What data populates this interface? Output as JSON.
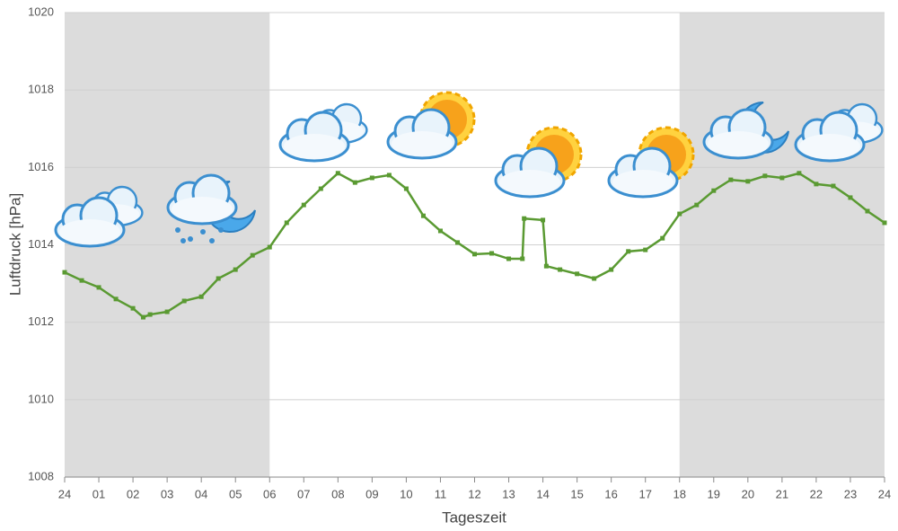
{
  "chart_data": {
    "type": "line",
    "y_label": "Luftdruck [hPa]",
    "x_label": "Tageszeit",
    "xlim": [
      0,
      24
    ],
    "ylim": [
      1008,
      1020
    ],
    "yticks": [
      1008,
      1010,
      1012,
      1014,
      1016,
      1018,
      1020
    ],
    "xticks": [
      {
        "value": 0,
        "label": "24"
      },
      {
        "value": 1,
        "label": "01"
      },
      {
        "value": 2,
        "label": "02"
      },
      {
        "value": 3,
        "label": "03"
      },
      {
        "value": 4,
        "label": "04"
      },
      {
        "value": 5,
        "label": "05"
      },
      {
        "value": 6,
        "label": "06"
      },
      {
        "value": 7,
        "label": "07"
      },
      {
        "value": 8,
        "label": "08"
      },
      {
        "value": 9,
        "label": "09"
      },
      10,
      11,
      12,
      13,
      14,
      15,
      16,
      17,
      18,
      19,
      20,
      21,
      22,
      23,
      24
    ],
    "shaded_ranges": [
      [
        0,
        6
      ],
      [
        18,
        24
      ]
    ],
    "grid": true,
    "series": [
      {
        "color": "#5a9a32",
        "x": [
          0,
          0.5,
          1,
          1.5,
          2,
          2.3,
          2.5,
          3,
          3.5,
          4,
          4.5,
          5,
          5.5,
          6,
          6.5,
          7,
          7.5,
          8,
          8.5,
          9,
          9.5,
          10,
          10.5,
          11,
          11.5,
          12,
          12.5,
          13,
          13.4,
          13.45,
          14,
          14.1,
          14.5,
          15,
          15.5,
          16,
          16.5,
          17,
          17.5,
          18,
          18.5,
          19,
          19.5,
          20,
          20.5,
          21,
          21.5,
          22,
          22.5,
          23,
          23.5,
          24
        ],
        "values": [
          1013.29,
          1013.08,
          1012.9,
          1012.6,
          1012.36,
          1012.13,
          1012.2,
          1012.27,
          1012.55,
          1012.66,
          1013.13,
          1013.36,
          1013.73,
          1013.94,
          1014.57,
          1015.03,
          1015.45,
          1015.85,
          1015.61,
          1015.73,
          1015.8,
          1015.45,
          1014.75,
          1014.36,
          1014.06,
          1013.76,
          1013.78,
          1013.64,
          1013.64,
          1014.68,
          1014.64,
          1013.45,
          1013.36,
          1013.25,
          1013.13,
          1013.36,
          1013.83,
          1013.87,
          1014.17,
          1014.8,
          1015.03,
          1015.4,
          1015.68,
          1015.64,
          1015.78,
          1015.73,
          1015.85,
          1015.57,
          1015.52,
          1015.22,
          1014.87,
          1014.57
        ]
      }
    ]
  }
}
